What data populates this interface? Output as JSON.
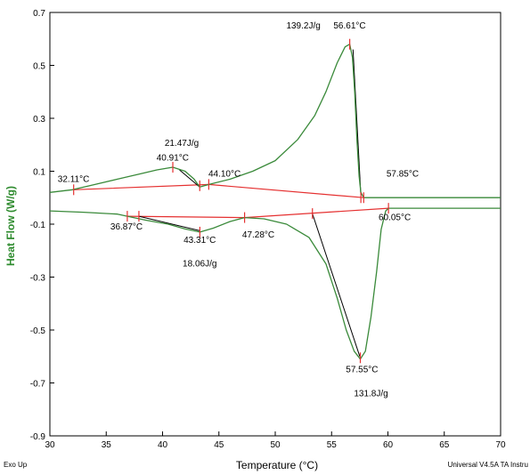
{
  "chart_data": {
    "type": "line",
    "title": "",
    "xlabel": "Temperature (°C)",
    "ylabel": "Heat Flow (W/g)",
    "xlim": [
      30,
      70
    ],
    "ylim": [
      -0.9,
      0.7
    ],
    "x_ticks": [
      "30",
      "35",
      "40",
      "45",
      "50",
      "55",
      "60",
      "65",
      "70"
    ],
    "y_ticks": [
      "0.7",
      "0.5",
      "0.3",
      "0.1",
      "-0.1",
      "-0.3",
      "-0.5",
      "-0.7",
      "-0.9"
    ],
    "grid": false,
    "colors": {
      "curve": "#3a8a3a",
      "baseline": "#e53030",
      "tangent": "#000000",
      "axis_title": "#2e8b2e"
    },
    "series": [
      {
        "x": [
          30,
          32,
          34,
          36,
          38,
          39.5,
          40.91,
          42,
          42.8,
          43.3,
          44.1,
          46,
          48,
          50,
          52,
          53.5,
          54.5,
          55.5,
          56.2,
          56.61,
          56.85,
          57.05,
          57.25,
          57.45,
          57.6,
          57.85,
          60,
          65,
          70
        ],
        "y": [
          0.02,
          0.03,
          0.05,
          0.07,
          0.09,
          0.105,
          0.115,
          0.1,
          0.07,
          0.04,
          0.05,
          0.07,
          0.1,
          0.14,
          0.22,
          0.31,
          0.4,
          0.51,
          0.57,
          0.58,
          0.53,
          0.4,
          0.22,
          0.08,
          0.02,
          0.0,
          0.0,
          0.0,
          0.0
        ]
      },
      {
        "x": [
          30,
          33,
          36,
          36.87,
          38.5,
          40.5,
          42,
          43.31,
          44.5,
          46,
          47.28,
          49,
          51,
          53,
          54.5,
          55.5,
          56.3,
          57.0,
          57.55,
          58.0,
          58.5,
          59.0,
          59.4,
          59.8,
          60.05,
          62,
          65,
          70
        ],
        "y": [
          -0.05,
          -0.055,
          -0.062,
          -0.07,
          -0.085,
          -0.1,
          -0.118,
          -0.13,
          -0.115,
          -0.09,
          -0.075,
          -0.08,
          -0.1,
          -0.15,
          -0.25,
          -0.38,
          -0.5,
          -0.58,
          -0.61,
          -0.58,
          -0.45,
          -0.28,
          -0.12,
          -0.05,
          -0.04,
          -0.04,
          -0.04,
          -0.04
        ]
      }
    ],
    "baselines": [
      {
        "x": [
          32.11,
          44.1,
          57.85
        ],
        "y": [
          0.03,
          0.05,
          0.0
        ]
      },
      {
        "x": [
          36.87,
          47.28,
          60.05
        ],
        "y": [
          -0.07,
          -0.075,
          -0.04
        ]
      }
    ],
    "tangents": [
      {
        "x": [
          41.5,
          43.3
        ],
        "y": [
          0.105,
          0.04
        ]
      },
      {
        "x": [
          56.9,
          57.6
        ],
        "y": [
          0.56,
          0.01
        ]
      },
      {
        "x": [
          37.9,
          43.31
        ],
        "y": [
          -0.07,
          -0.125
        ]
      },
      {
        "x": [
          53.3,
          57.5
        ],
        "y": [
          -0.06,
          -0.6
        ]
      }
    ],
    "markers": [
      {
        "x": 32.11,
        "y": 0.03
      },
      {
        "x": 40.91,
        "y": 0.115
      },
      {
        "x": 43.3,
        "y": 0.045
      },
      {
        "x": 44.1,
        "y": 0.05
      },
      {
        "x": 56.61,
        "y": 0.58
      },
      {
        "x": 57.6,
        "y": 0.0
      },
      {
        "x": 57.85,
        "y": 0.0
      },
      {
        "x": 36.87,
        "y": -0.07
      },
      {
        "x": 37.9,
        "y": -0.07
      },
      {
        "x": 43.31,
        "y": -0.13
      },
      {
        "x": 47.28,
        "y": -0.075
      },
      {
        "x": 53.3,
        "y": -0.06
      },
      {
        "x": 57.55,
        "y": -0.605
      },
      {
        "x": 60.05,
        "y": -0.04
      }
    ],
    "annotations": [
      {
        "text": "32.11°C",
        "x": 32.1,
        "y": 0.06
      },
      {
        "text": "21.47J/g",
        "x": 41.7,
        "y": 0.195
      },
      {
        "text": "40.91°C",
        "x": 40.9,
        "y": 0.14
      },
      {
        "text": "44.10°C",
        "x": 45.5,
        "y": 0.08
      },
      {
        "text": "139.2J/g",
        "x": 52.5,
        "y": 0.64
      },
      {
        "text": "56.61°C",
        "x": 56.6,
        "y": 0.64
      },
      {
        "text": "57.85°C",
        "x": 61.3,
        "y": 0.08
      },
      {
        "text": "36.87°C",
        "x": 36.8,
        "y": -0.12
      },
      {
        "text": "43.31°C",
        "x": 43.3,
        "y": -0.17
      },
      {
        "text": "47.28°C",
        "x": 48.5,
        "y": -0.15
      },
      {
        "text": "60.05°C",
        "x": 60.6,
        "y": -0.085
      },
      {
        "text": "18.06J/g",
        "x": 43.3,
        "y": -0.26
      },
      {
        "text": "57.55°C",
        "x": 57.7,
        "y": -0.66
      },
      {
        "text": "131.8J/g",
        "x": 58.5,
        "y": -0.75
      }
    ]
  },
  "footer": {
    "left_note": "Exo Up",
    "right_note": "Universal V4.5A TA Instru"
  }
}
